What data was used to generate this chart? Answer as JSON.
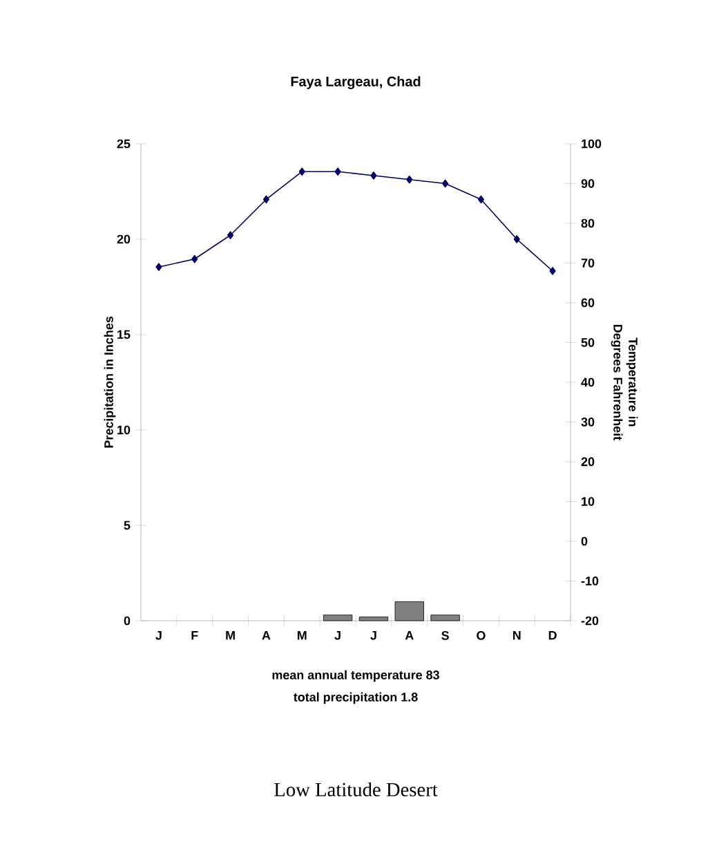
{
  "chart_data": {
    "type": "bar",
    "title": "Faya Largeau, Chad",
    "categories": [
      "J",
      "F",
      "M",
      "A",
      "M",
      "J",
      "J",
      "A",
      "S",
      "O",
      "N",
      "D"
    ],
    "ylabel": "Precipitation in Inches",
    "y2label": "Temperature in Degrees Fahrenheit",
    "ylim": [
      0,
      25
    ],
    "yticks": [
      0,
      5,
      10,
      15,
      20,
      25
    ],
    "y2lim": [
      -20,
      100
    ],
    "y2ticks": [
      -20,
      -10,
      0,
      10,
      20,
      30,
      40,
      50,
      60,
      70,
      80,
      90,
      100
    ],
    "series": [
      {
        "color": "#808080",
        "values": [
          null,
          null,
          null,
          null,
          null,
          0.3,
          0.2,
          1.0,
          0.3,
          null,
          null,
          null
        ]
      },
      {
        "type": "line",
        "axis": "y2",
        "color": "#000066",
        "marker": "diamond",
        "line_style": "solid",
        "values": [
          69,
          71,
          77,
          86,
          93,
          93,
          92,
          91,
          90,
          86,
          76,
          68
        ]
      }
    ],
    "annotations": [
      "mean annual temperature 83",
      "total precipitation 1.8",
      "Low Latitude Desert"
    ]
  }
}
